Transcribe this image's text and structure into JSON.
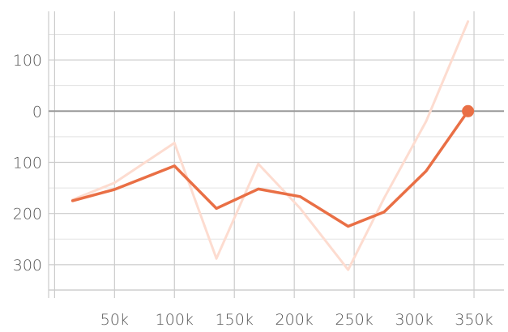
{
  "chart_data": {
    "type": "line",
    "title": "",
    "xlabel": "",
    "ylabel": "",
    "xlim": [
      -5000,
      375000
    ],
    "ylim": [
      -365,
      195
    ],
    "grid": true,
    "x_ticks": [
      {
        "value": 50000,
        "label": "50k"
      },
      {
        "value": 100000,
        "label": "100k"
      },
      {
        "value": 150000,
        "label": "150k"
      },
      {
        "value": 200000,
        "label": "200k"
      },
      {
        "value": 250000,
        "label": "250k"
      },
      {
        "value": 300000,
        "label": "300k"
      },
      {
        "value": 350000,
        "label": "350k"
      }
    ],
    "y_ticks": [
      {
        "value": 100,
        "label": "100"
      },
      {
        "value": 0,
        "label": "0"
      },
      {
        "value": -100,
        "label": "100"
      },
      {
        "value": -200,
        "label": "200"
      },
      {
        "value": -300,
        "label": "300"
      }
    ],
    "series": [
      {
        "style": "raw",
        "color": "#fddcd0",
        "points": [
          [
            15000,
            -173
          ],
          [
            50000,
            -140
          ],
          [
            100000,
            -62
          ],
          [
            135000,
            -288
          ],
          [
            170000,
            -103
          ],
          [
            205000,
            -190
          ],
          [
            245000,
            -310
          ],
          [
            275000,
            -170
          ],
          [
            310000,
            -20
          ],
          [
            345000,
            175
          ]
        ]
      },
      {
        "style": "smoothed",
        "color": "#e96f45",
        "points": [
          [
            15000,
            -175
          ],
          [
            50000,
            -153
          ],
          [
            100000,
            -107
          ],
          [
            135000,
            -190
          ],
          [
            170000,
            -152
          ],
          [
            205000,
            -167
          ],
          [
            245000,
            -225
          ],
          [
            275000,
            -197
          ],
          [
            310000,
            -117
          ],
          [
            345000,
            0
          ]
        ],
        "end_marker": true
      }
    ],
    "zero_line": 0
  }
}
